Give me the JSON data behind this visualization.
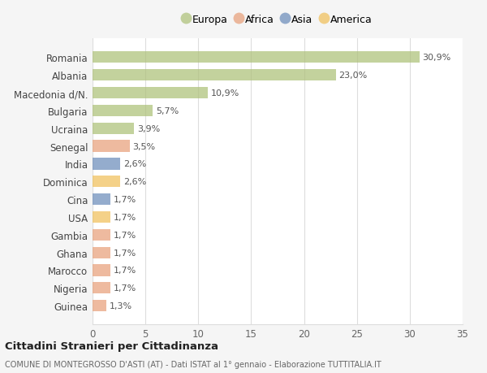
{
  "countries": [
    "Romania",
    "Albania",
    "Macedonia d/N.",
    "Bulgaria",
    "Ucraina",
    "Senegal",
    "India",
    "Dominica",
    "Cina",
    "USA",
    "Gambia",
    "Ghana",
    "Marocco",
    "Nigeria",
    "Guinea"
  ],
  "values": [
    30.9,
    23.0,
    10.9,
    5.7,
    3.9,
    3.5,
    2.6,
    2.6,
    1.7,
    1.7,
    1.7,
    1.7,
    1.7,
    1.7,
    1.3
  ],
  "labels": [
    "30,9%",
    "23,0%",
    "10,9%",
    "5,7%",
    "3,9%",
    "3,5%",
    "2,6%",
    "2,6%",
    "1,7%",
    "1,7%",
    "1,7%",
    "1,7%",
    "1,7%",
    "1,7%",
    "1,3%"
  ],
  "continents": [
    "Europa",
    "Europa",
    "Europa",
    "Europa",
    "Europa",
    "Africa",
    "Asia",
    "America",
    "Asia",
    "America",
    "Africa",
    "Africa",
    "Africa",
    "Africa",
    "Africa"
  ],
  "continent_colors": {
    "Europa": "#adc178",
    "Africa": "#e8a07a",
    "Asia": "#6b8cba",
    "America": "#f0c05a"
  },
  "legend_order": [
    "Europa",
    "Africa",
    "Asia",
    "America"
  ],
  "title": "Cittadini Stranieri per Cittadinanza",
  "subtitle": "COMUNE DI MONTEGROSSO D'ASTI (AT) - Dati ISTAT al 1° gennaio - Elaborazione TUTTITALIA.IT",
  "xlim": [
    0,
    35
  ],
  "xticks": [
    0,
    5,
    10,
    15,
    20,
    25,
    30,
    35
  ],
  "background_color": "#f5f5f5",
  "bar_background": "#ffffff",
  "grid_color": "#dddddd",
  "bar_alpha": 0.72,
  "bar_height": 0.65
}
